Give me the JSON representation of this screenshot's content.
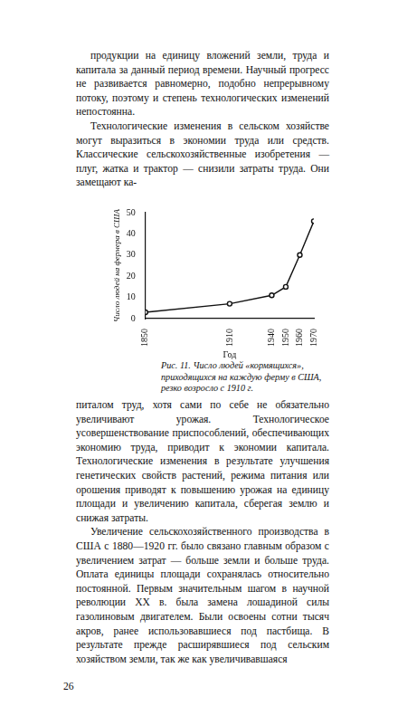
{
  "page_top_paragraphs": [
    "продукции на единицу вложений земли, труда и капитала за данный период времени. Научный прогресс не развивается равномерно, подобно непрерывному потоку, поэтому и степень технологических изменений непостоянна.",
    "Технологические изменения в сельском хозяйстве могут выразиться в экономии труда или средств. Классические сельскохозяйственные изобретения — плуг, жатка и трактор — снизили затраты труда. Они замещают ка-"
  ],
  "chart_data": {
    "type": "line",
    "x_label": "Год",
    "y_label": "Число людей на фермера в США",
    "x": [
      1850,
      1910,
      1940,
      1950,
      1960,
      1970
    ],
    "values": [
      3,
      7,
      11,
      15,
      30,
      46
    ],
    "color": "#111111",
    "marker": "circle",
    "line_style": "solid",
    "xlim": [
      1850,
      1970
    ],
    "xticks": [
      1850,
      1910,
      1940,
      1950,
      1960,
      1970
    ],
    "ylim": [
      0,
      50
    ],
    "yticks": [
      0,
      10,
      20,
      30,
      40,
      50
    ],
    "grid": false
  },
  "caption": "Рис. 11. Число людей «кормящихся», приходящихся на каждую ферму в США, резко возросло с 1910 г.",
  "page_bottom_paragraphs": [
    "питалом труд, хотя сами по себе не обязательно увеличивают урожая. Технологическое усовершенствование приспособлений, обеспечивающих экономию труда, приводит к экономии капитала. Технологические изменения в результате улучшения генетических свойств растений, режима питания или орошения приводят к повышению урожая на единицу площади и увеличению капитала, сберегая землю и снижая затраты.",
    "Увеличение сельскохозяйственного производства в США с 1880—1920 гг. было связано главным образом с увеличением затрат — больше земли и больше труда. Оплата единицы площади сохранялась относительно постоянной. Первым значительным шагом в научной революции XX в. была замена лошадиной силы газолиновым двигателем. Были освоены сотни тысяч акров, ранее использовавшиеся под пастбища. В результате прежде расширявшиеся под сельским хозяйством земли, так же как увеличивавшаяся"
  ],
  "page_number": "26"
}
